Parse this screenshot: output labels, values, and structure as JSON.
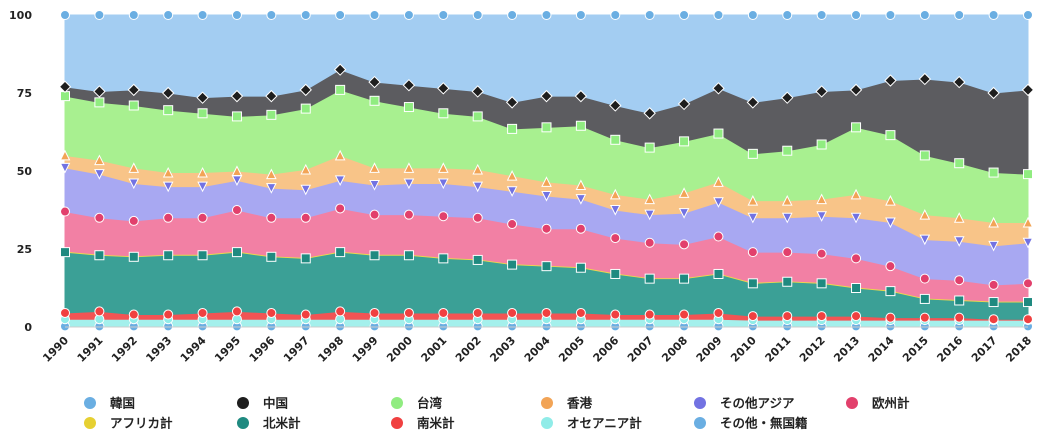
{
  "chart_data": {
    "type": "stacked-area-percent",
    "categories": [
      "1990",
      "1991",
      "1992",
      "1993",
      "1994",
      "1995",
      "1996",
      "1997",
      "1998",
      "1999",
      "2000",
      "2001",
      "2002",
      "2003",
      "2004",
      "2005",
      "2006",
      "2007",
      "2008",
      "2009",
      "2010",
      "2011",
      "2012",
      "2013",
      "2014",
      "2015",
      "2016",
      "2017",
      "2018"
    ],
    "ylim": [
      0,
      100
    ],
    "yticks": [
      0,
      25,
      50,
      75,
      100
    ],
    "series": [
      {
        "name": "韓国",
        "color": "#a3cdf2",
        "marker_color": "#6aaee2",
        "marker": "circle",
        "values": [
          23,
          24.5,
          24,
          25,
          26.5,
          26,
          26,
          24,
          17.5,
          21.5,
          22.5,
          23.5,
          24.5,
          28,
          26,
          26,
          29,
          31.5,
          28.5,
          23.5,
          28,
          26.5,
          24.5,
          24,
          21,
          20.5,
          21.5,
          25,
          24
        ]
      },
      {
        "name": "中国",
        "color": "#5c5c60",
        "marker_color": "#1e1e1e",
        "marker": "diamond",
        "values": [
          3,
          3.5,
          5,
          5.5,
          5,
          6.5,
          6,
          6,
          6.5,
          6,
          7,
          8,
          8,
          8.5,
          10,
          9.5,
          11,
          11,
          12,
          14.5,
          16.5,
          17,
          17,
          12,
          17.5,
          24.5,
          26,
          25.5,
          27
        ]
      },
      {
        "name": "台湾",
        "color": "#a8f090",
        "marker_color": "#90ec80",
        "marker": "square",
        "values": [
          19,
          18.5,
          20,
          20,
          19,
          17.5,
          19,
          19.5,
          21,
          21.5,
          19.5,
          17.5,
          17,
          15,
          17.5,
          19,
          17.5,
          16.5,
          16.5,
          15.5,
          15,
          16,
          17.5,
          21.5,
          21,
          19,
          17.5,
          16,
          15.5
        ]
      },
      {
        "name": "香港",
        "color": "#f8c488",
        "marker_color": "#f2a456",
        "marker": "triangle",
        "values": [
          4,
          4.5,
          5,
          4.5,
          4.5,
          3,
          4.5,
          6.5,
          8,
          5.5,
          5,
          5,
          5.5,
          5,
          4.5,
          4.5,
          5,
          5,
          6.5,
          6.5,
          5.5,
          5.5,
          5.5,
          7.5,
          7,
          8,
          7.5,
          7.5,
          6.5
        ]
      },
      {
        "name": "その他アジア",
        "color": "#a8a8f2",
        "marker_color": "#7272e2",
        "marker": "triangle-down",
        "values": [
          14,
          14,
          12,
          10,
          10,
          9.5,
          9.5,
          9,
          9,
          9.5,
          10,
          10.5,
          10,
          10.5,
          10.5,
          9.5,
          9,
          9,
          10,
          11,
          11,
          11,
          12,
          13,
          14,
          12.5,
          12.5,
          12.5,
          13
        ]
      },
      {
        "name": "欧州計",
        "color": "#f280a4",
        "marker_color": "#e2406c",
        "marker": "circle",
        "values": [
          12.7,
          11.7,
          11.2,
          11.7,
          11.7,
          13.2,
          12.2,
          12.7,
          13.7,
          12.7,
          12.7,
          13.2,
          13.2,
          12.7,
          11.7,
          12.2,
          11.2,
          11.2,
          10.7,
          11.7,
          9.7,
          9.2,
          9.2,
          9.2,
          7.7,
          6.2,
          6.2,
          5.2,
          5.7
        ]
      },
      {
        "name": "アフリカ計",
        "color": "#ecd84c",
        "marker_color": "#e6d032",
        "marker": "none",
        "values": [
          0.3,
          0.3,
          0.3,
          0.3,
          0.3,
          0.3,
          0.3,
          0.3,
          0.3,
          0.3,
          0.3,
          0.3,
          0.3,
          0.3,
          0.3,
          0.3,
          0.3,
          0.3,
          0.3,
          0.3,
          0.3,
          0.3,
          0.3,
          0.3,
          0.3,
          0.3,
          0.3,
          0.3,
          0.3
        ]
      },
      {
        "name": "北米計",
        "color": "#3ba096",
        "marker_color": "#1f8a80",
        "marker": "square",
        "values": [
          19.5,
          18,
          18.5,
          19,
          18.5,
          19,
          18,
          18,
          19,
          18.5,
          18.5,
          17.5,
          17,
          15.5,
          15,
          14.5,
          13,
          11.5,
          11.5,
          12.5,
          10.5,
          11,
          10.5,
          9,
          8.5,
          6,
          5.5,
          5.5,
          5.5
        ]
      },
      {
        "name": "南米計",
        "color": "#f25454",
        "marker_color": "#f04040",
        "marker": "circle",
        "values": [
          2,
          2.5,
          1.5,
          1.5,
          2,
          2.5,
          2,
          1.5,
          2.5,
          2,
          2,
          2,
          2,
          2,
          2,
          2,
          1.5,
          1.5,
          1.5,
          2,
          1.3,
          1.3,
          1.3,
          1.3,
          0.8,
          0.8,
          0.8,
          0.3,
          0.3
        ]
      },
      {
        "name": "オセアニア計",
        "color": "#a4f0ec",
        "marker_color": "#90ece8",
        "marker": "circle",
        "values": [
          2.3,
          2.3,
          2.3,
          2.3,
          2.3,
          2.3,
          2.3,
          2.3,
          2.3,
          2.3,
          2.3,
          2.3,
          2.3,
          2.3,
          2.3,
          2.3,
          2.3,
          2.3,
          2.3,
          2.3,
          2,
          2,
          2,
          2,
          2,
          2,
          2,
          2,
          2
        ]
      },
      {
        "name": "その他・無国籍",
        "color": "#7cb6ea",
        "marker_color": "#6aaee2",
        "marker": "circle",
        "values": [
          0.2,
          0.2,
          0.2,
          0.2,
          0.2,
          0.2,
          0.2,
          0.2,
          0.2,
          0.2,
          0.2,
          0.2,
          0.2,
          0.2,
          0.2,
          0.2,
          0.2,
          0.2,
          0.2,
          0.2,
          0.2,
          0.2,
          0.2,
          0.2,
          0.2,
          0.2,
          0.2,
          0.2,
          0.2
        ]
      }
    ]
  }
}
